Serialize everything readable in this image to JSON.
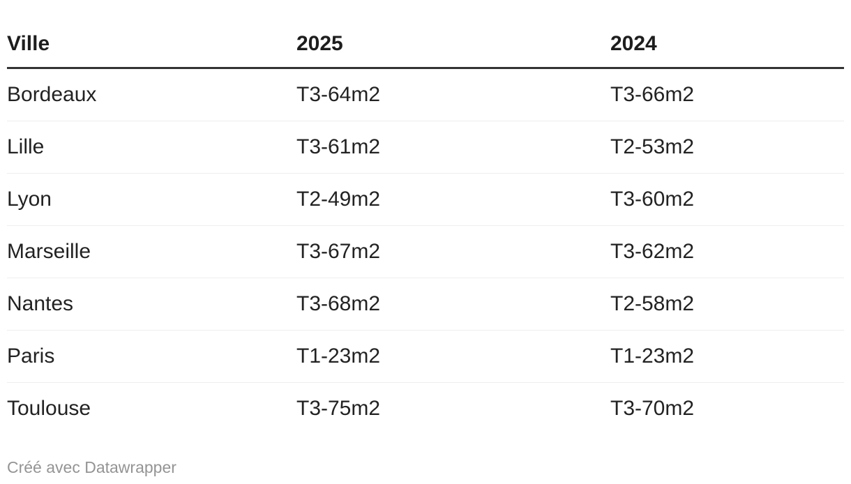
{
  "colors": {
    "background": "#ffffff",
    "header_text": "#1d1d1d",
    "body_text": "#222222",
    "header_rule": "#333333",
    "row_divider": "#eeeeee",
    "credit_text": "#949494"
  },
  "chart_data": {
    "type": "table",
    "title": "",
    "columns": [
      "Ville",
      "2025",
      "2024"
    ],
    "rows": [
      [
        "Bordeaux",
        "T3-64m2",
        "T3-66m2"
      ],
      [
        "Lille",
        "T3-61m2",
        "T2-53m2"
      ],
      [
        "Lyon",
        "T2-49m2",
        "T3-60m2"
      ],
      [
        "Marseille",
        "T3-67m2",
        "T3-62m2"
      ],
      [
        "Nantes",
        "T3-68m2",
        "T2-58m2"
      ],
      [
        "Paris",
        "T1-23m2",
        "T1-23m2"
      ],
      [
        "Toulouse",
        "T3-75m2",
        "T3-70m2"
      ]
    ],
    "layout": {
      "header_rule": true,
      "row_dividers": true,
      "column_alignment": [
        "left",
        "left",
        "left"
      ]
    }
  },
  "footer": {
    "credit": "Créé avec Datawrapper"
  }
}
